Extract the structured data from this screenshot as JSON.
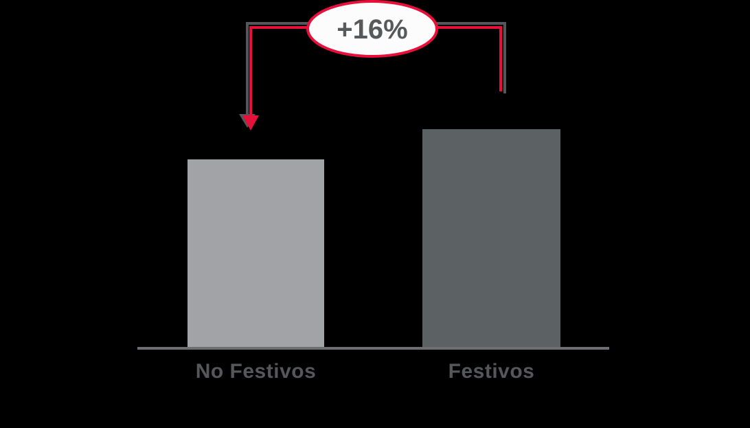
{
  "chart_data": {
    "type": "bar",
    "title": "",
    "xlabel": "",
    "ylabel": "",
    "categories": [
      "No Festivos",
      "Festivos"
    ],
    "values": [
      100,
      116
    ],
    "annotation": "+16%",
    "grid": false,
    "legend": false
  },
  "annotation": {
    "label": "+16%"
  },
  "colors": {
    "background": "#000000",
    "bar_no_festivos": "#A1A3A6",
    "bar_festivos": "#5C6164",
    "axis": "#6D6E71",
    "label_text": "#55575A",
    "accent_red": "#E8103A",
    "shadow_gray": "#55565B",
    "badge_fill": "#FCFCFC",
    "badge_text": "#58595B"
  }
}
